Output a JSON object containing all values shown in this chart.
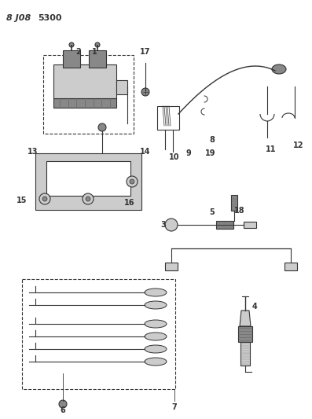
{
  "title": "8 J08 5300",
  "bg_color": "#ffffff",
  "lc": "#333333",
  "gray1": "#aaaaaa",
  "gray2": "#888888",
  "gray3": "#cccccc",
  "gray4": "#555555"
}
